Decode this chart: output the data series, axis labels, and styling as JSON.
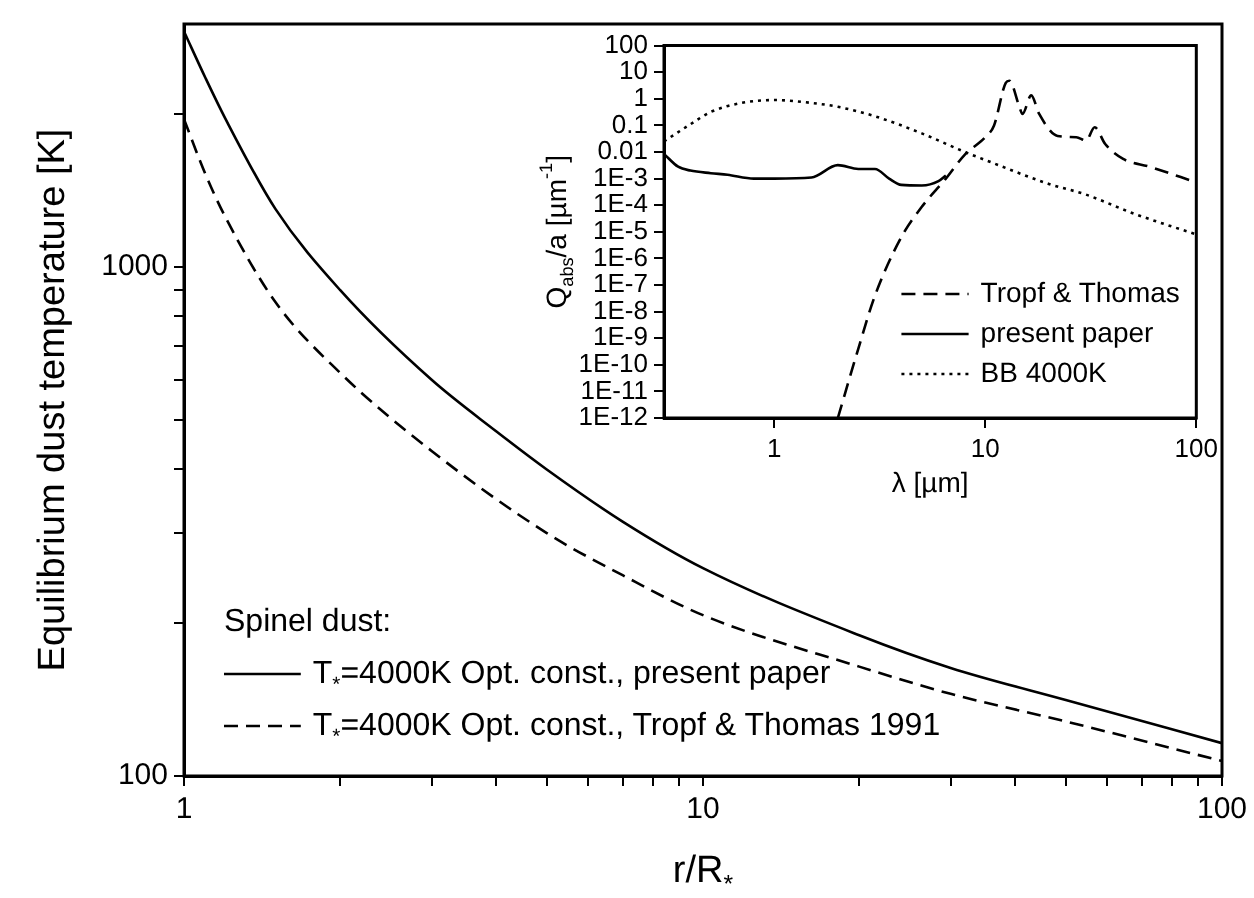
{
  "chart_data": [
    {
      "type": "line",
      "xlabel": "r/R$_{*}$",
      "ylabel": "Equilibrium dust temperature [K]",
      "legend_title": "Spinel dust:",
      "legend": "bottom left",
      "grid": false,
      "log": "xy",
      "xlim": [
        1,
        100
      ],
      "ylim": [
        100,
        3000
      ],
      "xticks": [
        1,
        {
          "value": 2,
          "label": null
        },
        {
          "value": 3,
          "label": null
        },
        {
          "value": 4,
          "label": null
        },
        {
          "value": 5,
          "label": null
        },
        {
          "value": 6,
          "label": null
        },
        {
          "value": 7,
          "label": null
        },
        {
          "value": 8,
          "label": null
        },
        {
          "value": 9,
          "label": null
        },
        10,
        {
          "value": 20,
          "label": null
        },
        {
          "value": 30,
          "label": null
        },
        {
          "value": 40,
          "label": null
        },
        {
          "value": 50,
          "label": null
        },
        {
          "value": 60,
          "label": null
        },
        {
          "value": 70,
          "label": null
        },
        {
          "value": 80,
          "label": null
        },
        {
          "value": 90,
          "label": null
        },
        100
      ],
      "yticks": [
        100,
        {
          "value": 200,
          "label": null
        },
        {
          "value": 300,
          "label": null
        },
        {
          "value": 400,
          "label": null
        },
        {
          "value": 500,
          "label": null
        },
        {
          "value": 600,
          "label": null
        },
        {
          "value": 700,
          "label": null
        },
        {
          "value": 800,
          "label": null
        },
        {
          "value": 900,
          "label": null
        },
        1000,
        {
          "value": 2000,
          "label": null
        }
      ],
      "series": [
        {
          "name": "T$_{*}$=4000K Opt. const., present paper",
          "color": "#000000",
          "line_style": "solid",
          "x": [
            1,
            1.1,
            1.2,
            1.5,
            2,
            3,
            4,
            5,
            7,
            10,
            20,
            30,
            50,
            100
          ],
          "values": [
            2900,
            2350,
            1960,
            1300,
            900,
            600,
            475,
            400,
            316,
            256,
            189,
            163,
            141,
            116
          ]
        },
        {
          "name": "T$_{*}$=4000K Opt. const., Tropf & Thomas 1991",
          "color": "#000000",
          "line_style": "dashed",
          "x": [
            1,
            1.1,
            1.2,
            1.5,
            2,
            3,
            5,
            7,
            10,
            20,
            30,
            50,
            100
          ],
          "values": [
            1950,
            1520,
            1256,
            853,
            619,
            435,
            300,
            248,
            207,
            164,
            145,
            128,
            107
          ]
        }
      ]
    },
    {
      "type": "line",
      "xlabel": "λ [µm]",
      "ylabel": "Q$_{abs}$/a [µm$^{-1}$]",
      "legend": "bottom right",
      "grid": false,
      "log": "xy",
      "xlim": [
        0.3,
        100
      ],
      "ylim": [
        1e-12,
        100
      ],
      "xticks": [
        1,
        10,
        100
      ],
      "yticks": [
        100,
        10,
        1,
        0.1,
        0.01,
        {
          "value": 0.001,
          "label": "1E-3"
        },
        {
          "value": 0.0001,
          "label": "1E-4"
        },
        {
          "value": 1e-05,
          "label": "1E-5"
        },
        {
          "value": 1e-06,
          "label": "1E-6"
        },
        {
          "value": 1e-07,
          "label": "1E-7"
        },
        {
          "value": 1e-08,
          "label": "1E-8"
        },
        {
          "value": 1e-09,
          "label": "1E-9"
        },
        {
          "value": 1e-10,
          "label": "1E-10"
        },
        {
          "value": 1e-11,
          "label": "1E-11"
        },
        {
          "value": 1e-12,
          "label": "1E-12"
        }
      ],
      "series": [
        {
          "name": "Tropf & Thomas",
          "color": "#000000",
          "line_style": "dashed",
          "x": [
            2,
            2.5,
            3,
            4,
            5,
            6.5,
            8,
            10,
            11,
            12.5,
            13,
            14.5,
            15,
            16.5,
            18,
            22,
            27,
            30,
            33,
            37,
            45,
            60,
            100
          ],
          "values": [
            1e-12,
            4e-10,
            4e-08,
            6.3e-06,
            8.7e-05,
            0.001,
            0.008,
            0.036,
            0.1,
            4,
            4.8,
            0.5,
            0.27,
            1.35,
            0.27,
            0.04,
            0.036,
            0.027,
            0.085,
            0.02,
            0.0055,
            0.0028,
            0.00072
          ]
        },
        {
          "name": "present paper",
          "color": "#000000",
          "line_style": "solid",
          "x": [
            0.3,
            0.35,
            0.4,
            0.5,
            0.6,
            0.8,
            1,
            1.5,
            2,
            2.5,
            3,
            3.5,
            4,
            5,
            6,
            6.5
          ],
          "values": [
            0.0085,
            0.0028,
            0.002,
            0.0016,
            0.0014,
            0.001,
            0.001,
            0.0011,
            0.0032,
            0.0023,
            0.0023,
            0.001,
            0.00058,
            0.00055,
            0.0008,
            0.0013
          ]
        },
        {
          "name": "BB 4000K",
          "color": "#000000",
          "line_style": "dotted",
          "x": [
            0.3,
            0.4,
            0.5,
            0.7,
            1,
            1.5,
            2,
            3,
            5,
            8,
            10,
            20,
            30,
            50,
            100
          ],
          "values": [
            0.025,
            0.11,
            0.32,
            0.7,
            0.9,
            0.7,
            0.5,
            0.22,
            0.05,
            0.01,
            0.005,
            0.00063,
            0.00025,
            5e-05,
            7.9e-06
          ]
        }
      ]
    }
  ]
}
